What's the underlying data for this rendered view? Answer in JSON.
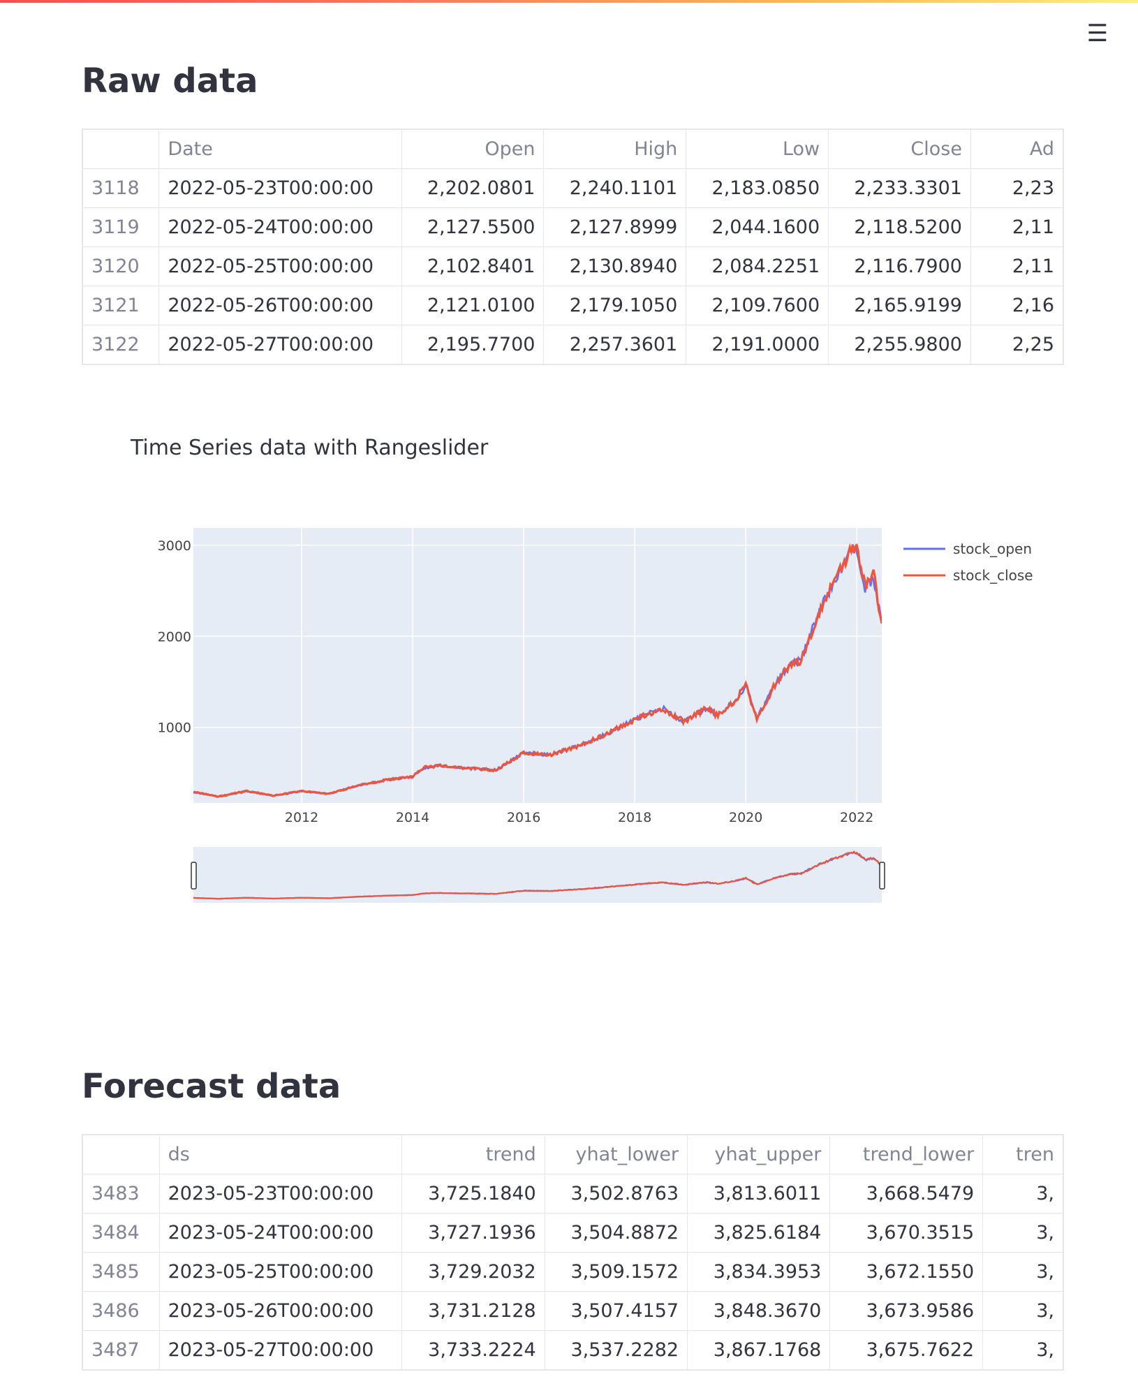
{
  "raw_data": {
    "title": "Raw data",
    "columns": [
      "",
      "Date",
      "Open",
      "High",
      "Low",
      "Close",
      "Ad"
    ],
    "rows": [
      [
        "3118",
        "2022-05-23T00:00:00",
        "2,202.0801",
        "2,240.1101",
        "2,183.0850",
        "2,233.3301",
        "2,23"
      ],
      [
        "3119",
        "2022-05-24T00:00:00",
        "2,127.5500",
        "2,127.8999",
        "2,044.1600",
        "2,118.5200",
        "2,11"
      ],
      [
        "3120",
        "2022-05-25T00:00:00",
        "2,102.8401",
        "2,130.8940",
        "2,084.2251",
        "2,116.7900",
        "2,11"
      ],
      [
        "3121",
        "2022-05-26T00:00:00",
        "2,121.0100",
        "2,179.1050",
        "2,109.7600",
        "2,165.9199",
        "2,16"
      ],
      [
        "3122",
        "2022-05-27T00:00:00",
        "2,195.7700",
        "2,257.3601",
        "2,191.0000",
        "2,255.9800",
        "2,25"
      ]
    ]
  },
  "chart": {
    "title": "Time Series data with Rangeslider"
  },
  "chart_data": {
    "type": "line",
    "title": "Time Series data with Rangeslider",
    "xlabel": "",
    "ylabel": "",
    "xlim": [
      2010.05,
      2022.45
    ],
    "ylim": [
      170,
      3190
    ],
    "x_tick_labels": [
      "2012",
      "2014",
      "2016",
      "2018",
      "2020",
      "2022"
    ],
    "x_ticks": [
      2012,
      2014,
      2016,
      2018,
      2020,
      2022
    ],
    "y_tick_labels": [
      "1000",
      "2000",
      "3000"
    ],
    "y_ticks": [
      1000,
      2000,
      3000
    ],
    "grid": true,
    "legend": "right",
    "rangeslider": true,
    "x": [
      2010.05,
      2010.5,
      2011.0,
      2011.5,
      2012.0,
      2012.5,
      2013.0,
      2013.5,
      2014.0,
      2014.2,
      2014.5,
      2015.0,
      2015.5,
      2016.0,
      2016.5,
      2017.0,
      2017.5,
      2018.0,
      2018.3,
      2018.5,
      2018.9,
      2019.0,
      2019.3,
      2019.5,
      2019.8,
      2020.0,
      2020.2,
      2020.5,
      2020.8,
      2021.0,
      2021.3,
      2021.6,
      2021.9,
      2022.0,
      2022.15,
      2022.3,
      2022.45
    ],
    "series": [
      {
        "name": "stock_open",
        "color": "#636efa",
        "values": [
          290,
          240,
          300,
          250,
          300,
          270,
          360,
          420,
          460,
          550,
          580,
          550,
          530,
          720,
          700,
          800,
          930,
          1080,
          1160,
          1210,
          1060,
          1110,
          1210,
          1130,
          1290,
          1460,
          1100,
          1440,
          1690,
          1740,
          2240,
          2620,
          2950,
          2960,
          2530,
          2650,
          2150
        ]
      },
      {
        "name": "stock_close",
        "color": "#ef553b",
        "values": [
          290,
          240,
          300,
          250,
          300,
          270,
          360,
          420,
          460,
          560,
          580,
          550,
          530,
          720,
          700,
          800,
          930,
          1080,
          1160,
          1210,
          1060,
          1110,
          1210,
          1130,
          1290,
          1460,
          1080,
          1440,
          1690,
          1730,
          2240,
          2620,
          2950,
          2990,
          2560,
          2700,
          2140
        ]
      }
    ]
  },
  "forecast_data": {
    "title": "Forecast data",
    "columns": [
      "",
      "ds",
      "trend",
      "yhat_lower",
      "yhat_upper",
      "trend_lower",
      "tren"
    ],
    "rows": [
      [
        "3483",
        "2023-05-23T00:00:00",
        "3,725.1840",
        "3,502.8763",
        "3,813.6011",
        "3,668.5479",
        "3,"
      ],
      [
        "3484",
        "2023-05-24T00:00:00",
        "3,727.1936",
        "3,504.8872",
        "3,825.6184",
        "3,670.3515",
        "3,"
      ],
      [
        "3485",
        "2023-05-25T00:00:00",
        "3,729.2032",
        "3,509.1572",
        "3,834.3953",
        "3,672.1550",
        "3,"
      ],
      [
        "3486",
        "2023-05-26T00:00:00",
        "3,731.2128",
        "3,507.4157",
        "3,848.3670",
        "3,673.9586",
        "3,"
      ],
      [
        "3487",
        "2023-05-27T00:00:00",
        "3,733.2224",
        "3,537.2282",
        "3,867.1768",
        "3,675.7622",
        "3,"
      ]
    ]
  },
  "menu": {
    "icon": "hamburger-menu-icon",
    "glyph": "☰"
  }
}
